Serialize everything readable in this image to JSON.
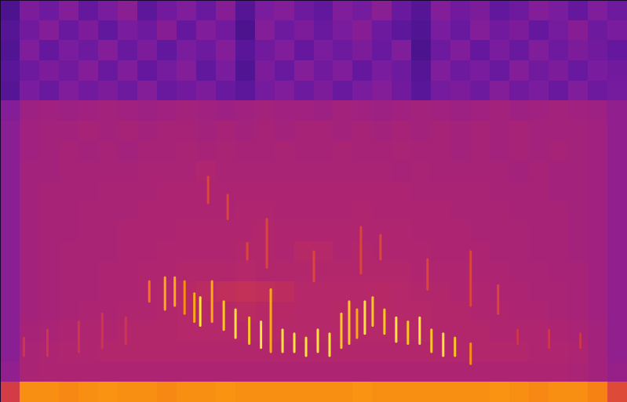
{
  "chart_data": {
    "type": "spectrogram",
    "tick_labels": false,
    "xlim": [
      0,
      32
    ],
    "ylim": [
      0,
      20
    ],
    "clim": [
      0,
      100
    ],
    "x": [
      0,
      1,
      2,
      3,
      4,
      5,
      6,
      7,
      8,
      9,
      10,
      11,
      12,
      13,
      14,
      15,
      16,
      17,
      18,
      19,
      20,
      21,
      22,
      23,
      24,
      25,
      26,
      27,
      28,
      29,
      30,
      31,
      32
    ],
    "y": [
      20,
      19,
      18,
      17,
      16,
      15,
      14,
      13,
      12,
      11,
      10,
      9,
      8,
      7,
      6,
      5,
      4,
      3,
      2,
      1,
      0
    ],
    "cells": [
      [
        22,
        34,
        30,
        36,
        28,
        33,
        38,
        26,
        31,
        35,
        29,
        37,
        24,
        33,
        36,
        30,
        27,
        35,
        32,
        38,
        29,
        24,
        36,
        31,
        34,
        27,
        30,
        36,
        33,
        28,
        35,
        30
      ],
      [
        24,
        31,
        36,
        29,
        34,
        27,
        33,
        30,
        37,
        28,
        35,
        31,
        22,
        36,
        30,
        34,
        29,
        33,
        37,
        30,
        26,
        23,
        33,
        29,
        36,
        31,
        34,
        28,
        32,
        37,
        30,
        33
      ],
      [
        23,
        35,
        28,
        33,
        30,
        36,
        29,
        34,
        27,
        33,
        30,
        36,
        25,
        31,
        35,
        28,
        33,
        30,
        34,
        29,
        35,
        22,
        30,
        35,
        28,
        33,
        29,
        35,
        30,
        34,
        31,
        28
      ],
      [
        25,
        30,
        34,
        31,
        36,
        29,
        35,
        28,
        32,
        36,
        27,
        33,
        23,
        34,
        29,
        36,
        31,
        35,
        28,
        33,
        30,
        24,
        35,
        30,
        33,
        29,
        36,
        31,
        34,
        29,
        33,
        31
      ],
      [
        24,
        33,
        29,
        35,
        31,
        34,
        30,
        36,
        29,
        31,
        34,
        29,
        26,
        32,
        35,
        30,
        34,
        29,
        33,
        36,
        31,
        25,
        32,
        34,
        30,
        36,
        31,
        33,
        29,
        35,
        30,
        32
      ],
      [
        36,
        44,
        45,
        44,
        45,
        46,
        45,
        44,
        45,
        46,
        45,
        44,
        45,
        46,
        45,
        45,
        44,
        46,
        45,
        44,
        45,
        46,
        45,
        44,
        45,
        46,
        44,
        45,
        46,
        45,
        44,
        40
      ],
      [
        38,
        45,
        46,
        46,
        47,
        46,
        47,
        46,
        47,
        47,
        46,
        47,
        46,
        47,
        46,
        47,
        47,
        46,
        47,
        46,
        47,
        46,
        47,
        46,
        47,
        46,
        47,
        46,
        46,
        46,
        45,
        40
      ],
      [
        38,
        45,
        46,
        47,
        46,
        47,
        46,
        47,
        47,
        48,
        47,
        48,
        47,
        47,
        48,
        47,
        47,
        48,
        47,
        47,
        48,
        47,
        47,
        46,
        47,
        46,
        47,
        46,
        47,
        46,
        45,
        40
      ],
      [
        38,
        46,
        46,
        47,
        47,
        47,
        47,
        48,
        48,
        48,
        50,
        48,
        48,
        48,
        48,
        48,
        48,
        48,
        48,
        48,
        47,
        48,
        47,
        47,
        47,
        47,
        46,
        47,
        46,
        46,
        45,
        40
      ],
      [
        38,
        46,
        47,
        47,
        47,
        48,
        48,
        48,
        49,
        49,
        49,
        49,
        49,
        49,
        49,
        49,
        49,
        49,
        49,
        49,
        49,
        48,
        48,
        48,
        48,
        47,
        47,
        47,
        46,
        46,
        45,
        40
      ],
      [
        38,
        46,
        47,
        47,
        48,
        48,
        48,
        49,
        49,
        49,
        49,
        49,
        50,
        50,
        49,
        49,
        49,
        49,
        50,
        49,
        49,
        49,
        49,
        48,
        48,
        48,
        47,
        47,
        47,
        46,
        45,
        40
      ],
      [
        38,
        46,
        47,
        47,
        48,
        48,
        49,
        49,
        49,
        50,
        50,
        50,
        50,
        51,
        50,
        50,
        50,
        50,
        50,
        50,
        50,
        49,
        49,
        49,
        48,
        48,
        48,
        47,
        47,
        46,
        45,
        40
      ],
      [
        38,
        46,
        47,
        48,
        48,
        48,
        49,
        49,
        50,
        50,
        50,
        50,
        51,
        51,
        50,
        53,
        52,
        50,
        51,
        50,
        50,
        50,
        49,
        49,
        49,
        48,
        48,
        47,
        47,
        46,
        45,
        40
      ],
      [
        38,
        46,
        47,
        48,
        48,
        49,
        49,
        50,
        50,
        51,
        51,
        51,
        52,
        51,
        51,
        51,
        51,
        51,
        51,
        51,
        51,
        50,
        50,
        50,
        49,
        49,
        48,
        48,
        47,
        47,
        45,
        40
      ],
      [
        38,
        46,
        47,
        48,
        48,
        49,
        49,
        50,
        51,
        53,
        54,
        56,
        57,
        56,
        55,
        52,
        52,
        52,
        52,
        53,
        52,
        51,
        51,
        50,
        50,
        49,
        49,
        48,
        48,
        47,
        45,
        40
      ],
      [
        38,
        46,
        47,
        48,
        49,
        49,
        50,
        50,
        51,
        52,
        53,
        53,
        54,
        53,
        53,
        52,
        52,
        53,
        52,
        53,
        52,
        52,
        51,
        51,
        50,
        50,
        49,
        49,
        48,
        47,
        45,
        40
      ],
      [
        38,
        47,
        48,
        49,
        50,
        50,
        51,
        51,
        51,
        52,
        52,
        52,
        52,
        52,
        52,
        52,
        52,
        52,
        52,
        52,
        52,
        52,
        51,
        51,
        51,
        50,
        50,
        50,
        49,
        48,
        46,
        40
      ],
      [
        38,
        48,
        49,
        50,
        50,
        51,
        51,
        51,
        51,
        51,
        51,
        51,
        51,
        51,
        51,
        51,
        51,
        51,
        51,
        51,
        51,
        51,
        51,
        51,
        51,
        51,
        51,
        50,
        50,
        49,
        46,
        40
      ],
      [
        40,
        48,
        49,
        49,
        49,
        49,
        49,
        49,
        49,
        49,
        49,
        49,
        49,
        49,
        49,
        49,
        49,
        49,
        49,
        49,
        49,
        49,
        49,
        49,
        49,
        49,
        49,
        49,
        49,
        48,
        46,
        42
      ],
      [
        62,
        80,
        80,
        79,
        80,
        81,
        80,
        80,
        79,
        80,
        80,
        81,
        80,
        80,
        80,
        80,
        80,
        80,
        81,
        80,
        80,
        80,
        80,
        80,
        80,
        81,
        80,
        79,
        80,
        80,
        78,
        66
      ]
    ],
    "calls": [
      {
        "x": 7.6,
        "y1": 6.0,
        "y2": 5.0,
        "value": 75
      },
      {
        "x": 8.4,
        "y1": 6.2,
        "y2": 4.6,
        "value": 85
      },
      {
        "x": 8.9,
        "y1": 6.2,
        "y2": 4.8,
        "value": 85
      },
      {
        "x": 9.4,
        "y1": 6.0,
        "y2": 4.4,
        "value": 80
      },
      {
        "x": 9.9,
        "y1": 5.4,
        "y2": 4.0,
        "value": 85
      },
      {
        "x": 10.2,
        "y1": 5.2,
        "y2": 3.8,
        "value": 95
      },
      {
        "x": 10.8,
        "y1": 6.0,
        "y2": 4.0,
        "value": 85
      },
      {
        "x": 11.4,
        "y1": 5.0,
        "y2": 3.6,
        "value": 90
      },
      {
        "x": 12.0,
        "y1": 4.6,
        "y2": 3.2,
        "value": 95
      },
      {
        "x": 12.7,
        "y1": 4.2,
        "y2": 2.9,
        "value": 90
      },
      {
        "x": 13.3,
        "y1": 4.0,
        "y2": 2.7,
        "value": 95
      },
      {
        "x": 13.8,
        "y1": 5.6,
        "y2": 2.5,
        "value": 85
      },
      {
        "x": 14.4,
        "y1": 3.6,
        "y2": 2.5,
        "value": 95
      },
      {
        "x": 15.0,
        "y1": 3.4,
        "y2": 2.5,
        "value": 95
      },
      {
        "x": 15.6,
        "y1": 3.2,
        "y2": 2.3,
        "value": 95
      },
      {
        "x": 16.2,
        "y1": 3.6,
        "y2": 2.5,
        "value": 95
      },
      {
        "x": 16.8,
        "y1": 3.4,
        "y2": 2.3,
        "value": 95
      },
      {
        "x": 17.4,
        "y1": 4.4,
        "y2": 2.7,
        "value": 90
      },
      {
        "x": 17.8,
        "y1": 5.0,
        "y2": 2.9,
        "value": 90
      },
      {
        "x": 18.2,
        "y1": 4.6,
        "y2": 3.2,
        "value": 85
      },
      {
        "x": 18.6,
        "y1": 5.0,
        "y2": 3.4,
        "value": 95
      },
      {
        "x": 19.0,
        "y1": 5.2,
        "y2": 3.8,
        "value": 90
      },
      {
        "x": 19.6,
        "y1": 4.6,
        "y2": 3.4,
        "value": 90
      },
      {
        "x": 20.2,
        "y1": 4.2,
        "y2": 3.0,
        "value": 95
      },
      {
        "x": 20.8,
        "y1": 4.0,
        "y2": 2.9,
        "value": 90
      },
      {
        "x": 21.4,
        "y1": 4.2,
        "y2": 2.9,
        "value": 95
      },
      {
        "x": 22.0,
        "y1": 3.6,
        "y2": 2.5,
        "value": 90
      },
      {
        "x": 22.6,
        "y1": 3.4,
        "y2": 2.3,
        "value": 95
      },
      {
        "x": 23.2,
        "y1": 3.2,
        "y2": 2.3,
        "value": 90
      },
      {
        "x": 24.0,
        "y1": 2.9,
        "y2": 1.9,
        "value": 80
      },
      {
        "x": 10.6,
        "y1": 11.2,
        "y2": 9.9,
        "value": 65
      },
      {
        "x": 11.6,
        "y1": 10.3,
        "y2": 9.1,
        "value": 65
      },
      {
        "x": 13.6,
        "y1": 9.1,
        "y2": 6.7,
        "value": 65
      },
      {
        "x": 18.4,
        "y1": 8.7,
        "y2": 6.4,
        "value": 65
      },
      {
        "x": 19.4,
        "y1": 8.3,
        "y2": 7.1,
        "value": 65
      },
      {
        "x": 21.8,
        "y1": 7.1,
        "y2": 5.6,
        "value": 65
      },
      {
        "x": 24.0,
        "y1": 7.5,
        "y2": 4.8,
        "value": 65
      },
      {
        "x": 25.4,
        "y1": 5.8,
        "y2": 4.4,
        "value": 65
      },
      {
        "x": 12.6,
        "y1": 7.9,
        "y2": 7.1,
        "value": 65
      },
      {
        "x": 16.0,
        "y1": 7.5,
        "y2": 6.0,
        "value": 65
      },
      {
        "x": 1.2,
        "y1": 3.2,
        "y2": 2.3,
        "value": 60
      },
      {
        "x": 2.4,
        "y1": 3.6,
        "y2": 2.3,
        "value": 60
      },
      {
        "x": 4.0,
        "y1": 4.0,
        "y2": 2.5,
        "value": 60
      },
      {
        "x": 5.2,
        "y1": 4.4,
        "y2": 2.7,
        "value": 60
      },
      {
        "x": 6.4,
        "y1": 4.2,
        "y2": 2.9,
        "value": 60
      },
      {
        "x": 26.4,
        "y1": 3.6,
        "y2": 2.9,
        "value": 60
      },
      {
        "x": 28.0,
        "y1": 3.6,
        "y2": 2.7,
        "value": 60
      },
      {
        "x": 29.6,
        "y1": 3.4,
        "y2": 2.7,
        "value": 60
      }
    ]
  }
}
